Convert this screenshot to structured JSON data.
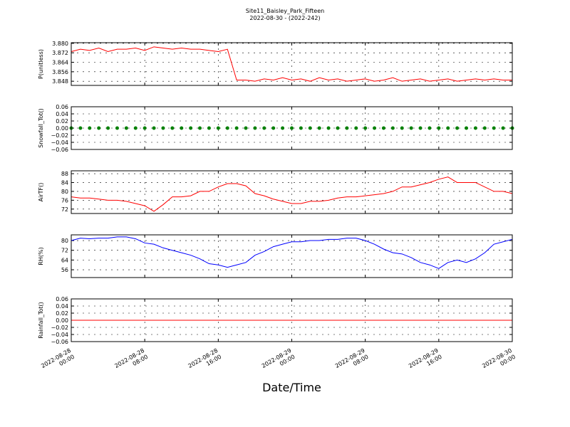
{
  "chart_data": [
    {
      "type": "line",
      "title": "Site11_Baisley_Park_Fifteen",
      "subtitle": "2022-08-30 - (2022-242)",
      "ylabel": "P(unitless)",
      "color": "#ff0000",
      "x": [
        "2022-08-28 00:00",
        "2022-08-28 01:00",
        "2022-08-28 02:00",
        "2022-08-28 03:00",
        "2022-08-28 04:00",
        "2022-08-28 05:00",
        "2022-08-28 06:00",
        "2022-08-28 07:00",
        "2022-08-28 08:00",
        "2022-08-28 09:00",
        "2022-08-28 10:00",
        "2022-08-28 11:00",
        "2022-08-28 12:00",
        "2022-08-28 13:00",
        "2022-08-28 14:00",
        "2022-08-28 15:00",
        "2022-08-28 16:00",
        "2022-08-28 17:00",
        "2022-08-28 18:00",
        "2022-08-28 19:00",
        "2022-08-28 20:00",
        "2022-08-28 21:00",
        "2022-08-28 22:00",
        "2022-08-28 23:00",
        "2022-08-29 00:00",
        "2022-08-29 01:00",
        "2022-08-29 02:00",
        "2022-08-29 03:00",
        "2022-08-29 04:00",
        "2022-08-29 05:00",
        "2022-08-29 06:00",
        "2022-08-29 07:00",
        "2022-08-29 08:00",
        "2022-08-29 09:00",
        "2022-08-29 10:00",
        "2022-08-29 11:00",
        "2022-08-29 12:00",
        "2022-08-29 13:00",
        "2022-08-29 14:00",
        "2022-08-29 15:00",
        "2022-08-29 16:00",
        "2022-08-29 17:00",
        "2022-08-29 18:00",
        "2022-08-29 19:00",
        "2022-08-29 20:00",
        "2022-08-29 21:00",
        "2022-08-29 22:00",
        "2022-08-29 23:00",
        "2022-08-30 00:00"
      ],
      "values": [
        3.873,
        3.875,
        3.874,
        3.876,
        3.873,
        3.875,
        3.875,
        3.876,
        3.874,
        3.877,
        3.876,
        3.875,
        3.876,
        3.875,
        3.875,
        3.874,
        3.873,
        3.875,
        3.849,
        3.849,
        3.848,
        3.85,
        3.849,
        3.851,
        3.849,
        3.85,
        3.848,
        3.851,
        3.849,
        3.85,
        3.848,
        3.849,
        3.85,
        3.848,
        3.849,
        3.851,
        3.848,
        3.849,
        3.85,
        3.848,
        3.849,
        3.85,
        3.848,
        3.849,
        3.85,
        3.849,
        3.85,
        3.849,
        3.849
      ],
      "xlim": [
        "2022-08-28 00:00",
        "2022-08-30 00:00"
      ],
      "xticks": [
        "2022-08-28 00:00",
        "2022-08-28 08:00",
        "2022-08-28 16:00",
        "2022-08-29 00:00",
        "2022-08-29 08:00",
        "2022-08-29 16:00",
        "2022-08-30 00:00"
      ],
      "ylim": [
        3.8445,
        3.8805
      ],
      "yticks": [
        3.848,
        3.856,
        3.864,
        3.872,
        {
          "value": 3.88,
          "label": "3.880"
        }
      ],
      "grid": true
    },
    {
      "type": "scatter",
      "ylabel": "Snowfall_Tot()",
      "color": "#008000",
      "x": [
        "2022-08-28 00:00",
        "2022-08-28 01:00",
        "2022-08-28 02:00",
        "2022-08-28 03:00",
        "2022-08-28 04:00",
        "2022-08-28 05:00",
        "2022-08-28 06:00",
        "2022-08-28 07:00",
        "2022-08-28 08:00",
        "2022-08-28 09:00",
        "2022-08-28 10:00",
        "2022-08-28 11:00",
        "2022-08-28 12:00",
        "2022-08-28 13:00",
        "2022-08-28 14:00",
        "2022-08-28 15:00",
        "2022-08-28 16:00",
        "2022-08-28 17:00",
        "2022-08-28 18:00",
        "2022-08-28 19:00",
        "2022-08-28 20:00",
        "2022-08-28 21:00",
        "2022-08-28 22:00",
        "2022-08-28 23:00",
        "2022-08-29 00:00",
        "2022-08-29 01:00",
        "2022-08-29 02:00",
        "2022-08-29 03:00",
        "2022-08-29 04:00",
        "2022-08-29 05:00",
        "2022-08-29 06:00",
        "2022-08-29 07:00",
        "2022-08-29 08:00",
        "2022-08-29 09:00",
        "2022-08-29 10:00",
        "2022-08-29 11:00",
        "2022-08-29 12:00",
        "2022-08-29 13:00",
        "2022-08-29 14:00",
        "2022-08-29 15:00",
        "2022-08-29 16:00",
        "2022-08-29 17:00",
        "2022-08-29 18:00",
        "2022-08-29 19:00",
        "2022-08-29 20:00",
        "2022-08-29 21:00",
        "2022-08-29 22:00",
        "2022-08-29 23:00",
        "2022-08-30 00:00"
      ],
      "values": [
        0,
        0,
        0,
        0,
        0,
        0,
        0,
        0,
        0,
        0,
        0,
        0,
        0,
        0,
        0,
        0,
        0,
        0,
        0,
        0,
        0,
        0,
        0,
        0,
        0,
        0,
        0,
        0,
        0,
        0,
        0,
        0,
        0,
        0,
        0,
        0,
        0,
        0,
        0,
        0,
        0,
        0,
        0,
        0,
        0,
        0,
        0,
        0,
        0
      ],
      "xlim": [
        "2022-08-28 00:00",
        "2022-08-30 00:00"
      ],
      "xticks": [
        "2022-08-28 00:00",
        "2022-08-28 08:00",
        "2022-08-28 16:00",
        "2022-08-29 00:00",
        "2022-08-29 08:00",
        "2022-08-29 16:00",
        "2022-08-30 00:00"
      ],
      "ylim": [
        -0.06,
        0.06
      ],
      "yticks": [
        {
          "value": -0.06,
          "label": "−0.06"
        },
        {
          "value": -0.04,
          "label": "−0.04"
        },
        {
          "value": -0.02,
          "label": "−0.02"
        },
        {
          "value": 0,
          "label": "0.00"
        },
        0.02,
        0.04,
        0.06
      ],
      "grid": true
    },
    {
      "type": "line",
      "ylabel": "AirTF()",
      "color": "#ff0000",
      "x": [
        "2022-08-28 00:00",
        "2022-08-28 01:00",
        "2022-08-28 02:00",
        "2022-08-28 03:00",
        "2022-08-28 04:00",
        "2022-08-28 05:00",
        "2022-08-28 06:00",
        "2022-08-28 07:00",
        "2022-08-28 08:00",
        "2022-08-28 09:00",
        "2022-08-28 10:00",
        "2022-08-28 11:00",
        "2022-08-28 12:00",
        "2022-08-28 13:00",
        "2022-08-28 14:00",
        "2022-08-28 15:00",
        "2022-08-28 16:00",
        "2022-08-28 17:00",
        "2022-08-28 18:00",
        "2022-08-28 19:00",
        "2022-08-28 20:00",
        "2022-08-28 21:00",
        "2022-08-28 22:00",
        "2022-08-28 23:00",
        "2022-08-29 00:00",
        "2022-08-29 01:00",
        "2022-08-29 02:00",
        "2022-08-29 03:00",
        "2022-08-29 04:00",
        "2022-08-29 05:00",
        "2022-08-29 06:00",
        "2022-08-29 07:00",
        "2022-08-29 08:00",
        "2022-08-29 09:00",
        "2022-08-29 10:00",
        "2022-08-29 11:00",
        "2022-08-29 12:00",
        "2022-08-29 13:00",
        "2022-08-29 14:00",
        "2022-08-29 15:00",
        "2022-08-29 16:00",
        "2022-08-29 17:00",
        "2022-08-29 18:00",
        "2022-08-29 19:00",
        "2022-08-29 20:00",
        "2022-08-29 21:00",
        "2022-08-29 22:00",
        "2022-08-29 23:00",
        "2022-08-30 00:00"
      ],
      "values": [
        77.5,
        77,
        77,
        76.5,
        76,
        76,
        75.5,
        74.5,
        73.5,
        71,
        74,
        77.5,
        77.5,
        78,
        80,
        80,
        82,
        83.5,
        83.5,
        82.5,
        79,
        78,
        76.5,
        75.5,
        74.5,
        74.5,
        75.5,
        75.5,
        76,
        77,
        77.5,
        77.5,
        78,
        78.5,
        79,
        80,
        82,
        82,
        83,
        84,
        85.5,
        86.5,
        84,
        84,
        84,
        82,
        80,
        80,
        79
      ],
      "xlim": [
        "2022-08-28 00:00",
        "2022-08-30 00:00"
      ],
      "xticks": [
        "2022-08-28 00:00",
        "2022-08-28 08:00",
        "2022-08-28 16:00",
        "2022-08-29 00:00",
        "2022-08-29 08:00",
        "2022-08-29 16:00",
        "2022-08-30 00:00"
      ],
      "ylim": [
        70,
        89.3
      ],
      "yticks": [
        72,
        76,
        80,
        84,
        88
      ],
      "grid": true
    },
    {
      "type": "line",
      "ylabel": "RH(%)",
      "color": "#0000ff",
      "x": [
        "2022-08-28 00:00",
        "2022-08-28 01:00",
        "2022-08-28 02:00",
        "2022-08-28 03:00",
        "2022-08-28 04:00",
        "2022-08-28 05:00",
        "2022-08-28 06:00",
        "2022-08-28 07:00",
        "2022-08-28 08:00",
        "2022-08-28 09:00",
        "2022-08-28 10:00",
        "2022-08-28 11:00",
        "2022-08-28 12:00",
        "2022-08-28 13:00",
        "2022-08-28 14:00",
        "2022-08-28 15:00",
        "2022-08-28 16:00",
        "2022-08-28 17:00",
        "2022-08-28 18:00",
        "2022-08-28 19:00",
        "2022-08-28 20:00",
        "2022-08-28 21:00",
        "2022-08-28 22:00",
        "2022-08-28 23:00",
        "2022-08-29 00:00",
        "2022-08-29 01:00",
        "2022-08-29 02:00",
        "2022-08-29 03:00",
        "2022-08-29 04:00",
        "2022-08-29 05:00",
        "2022-08-29 06:00",
        "2022-08-29 07:00",
        "2022-08-29 08:00",
        "2022-08-29 09:00",
        "2022-08-29 10:00",
        "2022-08-29 11:00",
        "2022-08-29 12:00",
        "2022-08-29 13:00",
        "2022-08-29 14:00",
        "2022-08-29 15:00",
        "2022-08-29 16:00",
        "2022-08-29 17:00",
        "2022-08-29 18:00",
        "2022-08-29 19:00",
        "2022-08-29 20:00",
        "2022-08-29 21:00",
        "2022-08-29 22:00",
        "2022-08-29 23:00",
        "2022-08-30 00:00"
      ],
      "values": [
        80,
        82,
        81.5,
        82,
        82,
        83,
        83,
        81.5,
        78,
        77,
        74,
        72,
        70,
        68,
        65,
        61,
        60,
        58,
        60,
        62,
        68,
        71,
        75,
        77,
        79,
        79,
        80,
        80,
        81,
        81,
        82,
        82,
        80,
        77,
        73,
        70,
        69,
        66,
        62,
        60,
        57,
        62,
        64,
        62,
        65,
        70,
        77,
        79,
        81
      ],
      "xlim": [
        "2022-08-28 00:00",
        "2022-08-30 00:00"
      ],
      "xticks": [
        "2022-08-28 00:00",
        "2022-08-28 08:00",
        "2022-08-28 16:00",
        "2022-08-29 00:00",
        "2022-08-29 08:00",
        "2022-08-29 16:00",
        "2022-08-30 00:00"
      ],
      "ylim": [
        49.6,
        84.7
      ],
      "yticks": [
        56,
        64,
        72,
        80
      ],
      "grid": true
    },
    {
      "type": "line",
      "ylabel": "Rainfall_Tot()",
      "xlabel": "Date/Time",
      "color": "#ff0000",
      "x": [
        "2022-08-28 00:00",
        "2022-08-28 01:00",
        "2022-08-28 02:00",
        "2022-08-28 03:00",
        "2022-08-28 04:00",
        "2022-08-28 05:00",
        "2022-08-28 06:00",
        "2022-08-28 07:00",
        "2022-08-28 08:00",
        "2022-08-28 09:00",
        "2022-08-28 10:00",
        "2022-08-28 11:00",
        "2022-08-28 12:00",
        "2022-08-28 13:00",
        "2022-08-28 14:00",
        "2022-08-28 15:00",
        "2022-08-28 16:00",
        "2022-08-28 17:00",
        "2022-08-28 18:00",
        "2022-08-28 19:00",
        "2022-08-28 20:00",
        "2022-08-28 21:00",
        "2022-08-28 22:00",
        "2022-08-28 23:00",
        "2022-08-29 00:00",
        "2022-08-29 01:00",
        "2022-08-29 02:00",
        "2022-08-29 03:00",
        "2022-08-29 04:00",
        "2022-08-29 05:00",
        "2022-08-29 06:00",
        "2022-08-29 07:00",
        "2022-08-29 08:00",
        "2022-08-29 09:00",
        "2022-08-29 10:00",
        "2022-08-29 11:00",
        "2022-08-29 12:00",
        "2022-08-29 13:00",
        "2022-08-29 14:00",
        "2022-08-29 15:00",
        "2022-08-29 16:00",
        "2022-08-29 17:00",
        "2022-08-29 18:00",
        "2022-08-29 19:00",
        "2022-08-29 20:00",
        "2022-08-29 21:00",
        "2022-08-29 22:00",
        "2022-08-29 23:00",
        "2022-08-30 00:00"
      ],
      "values": [
        0,
        0,
        0,
        0,
        0,
        0,
        0,
        0,
        0,
        0,
        0,
        0,
        0,
        0,
        0,
        0,
        0,
        0,
        0,
        0,
        0,
        0,
        0,
        0,
        0,
        0,
        0,
        0,
        0,
        0,
        0,
        0,
        0,
        0,
        0,
        0,
        0,
        0,
        0,
        0,
        0,
        0,
        0,
        0,
        0,
        0,
        0,
        0,
        0
      ],
      "xlim": [
        "2022-08-28 00:00",
        "2022-08-30 00:00"
      ],
      "xticks": [
        "2022-08-28 00:00",
        "2022-08-28 08:00",
        "2022-08-28 16:00",
        "2022-08-29 00:00",
        "2022-08-29 08:00",
        "2022-08-29 16:00",
        "2022-08-30 00:00"
      ],
      "ylim": [
        -0.06,
        0.06
      ],
      "yticks": [
        {
          "value": -0.06,
          "label": "−0.06"
        },
        {
          "value": -0.04,
          "label": "−0.04"
        },
        {
          "value": -0.02,
          "label": "−0.02"
        },
        {
          "value": 0,
          "label": "0.00"
        },
        0.02,
        0.04,
        0.06
      ],
      "grid": true
    }
  ]
}
